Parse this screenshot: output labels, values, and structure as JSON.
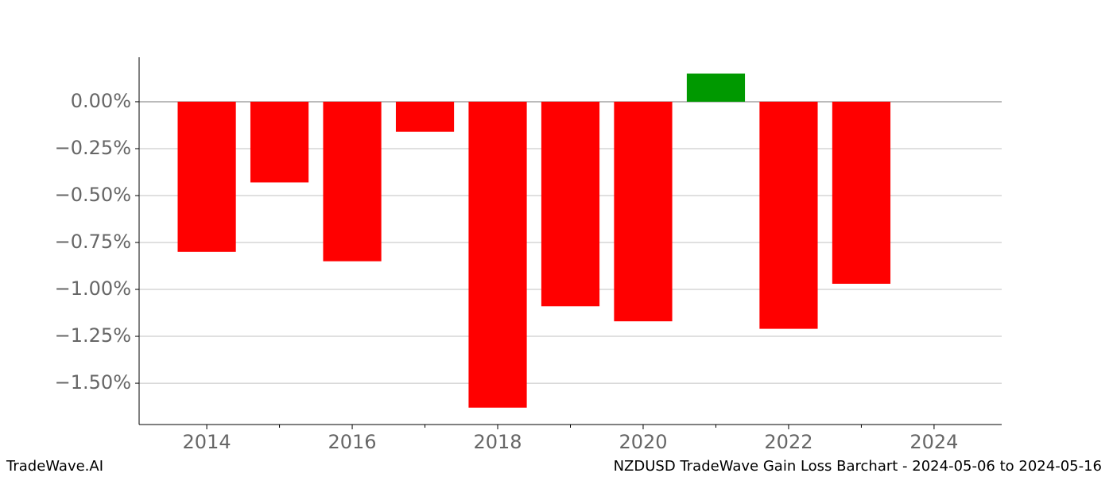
{
  "chart_data": {
    "type": "bar",
    "x": [
      2014,
      2015,
      2016,
      2017,
      2018,
      2019,
      2020,
      2021,
      2022,
      2023
    ],
    "values": [
      -0.8,
      -0.43,
      -0.85,
      -0.16,
      -1.63,
      -1.09,
      -1.17,
      0.15,
      -1.21,
      -0.97
    ],
    "positive_color": "#009900",
    "negative_color": "#ff0000",
    "xlim": [
      2013.07,
      2024.93
    ],
    "xticks": [
      2014,
      2016,
      2018,
      2020,
      2022,
      2024
    ],
    "xminorticks": [
      2015,
      2017,
      2019,
      2021,
      2023
    ],
    "ylim": [
      -1.72,
      0.237
    ],
    "yticks": [
      {
        "value": 0,
        "label": "0.00%"
      },
      {
        "value": -0.25,
        "label": "−0.25%"
      },
      {
        "value": -0.5,
        "label": "−0.50%"
      },
      {
        "value": -0.75,
        "label": "−0.75%"
      },
      {
        "value": -1.0,
        "label": "−1.00%"
      },
      {
        "value": -1.25,
        "label": "−1.25%"
      },
      {
        "value": -1.5,
        "label": "−1.50%"
      }
    ],
    "grid": true,
    "brand": "TradeWave.AI",
    "title": "NZDUSD TradeWave Gain Loss Barchart - 2024-05-06 to 2024-05-16"
  }
}
